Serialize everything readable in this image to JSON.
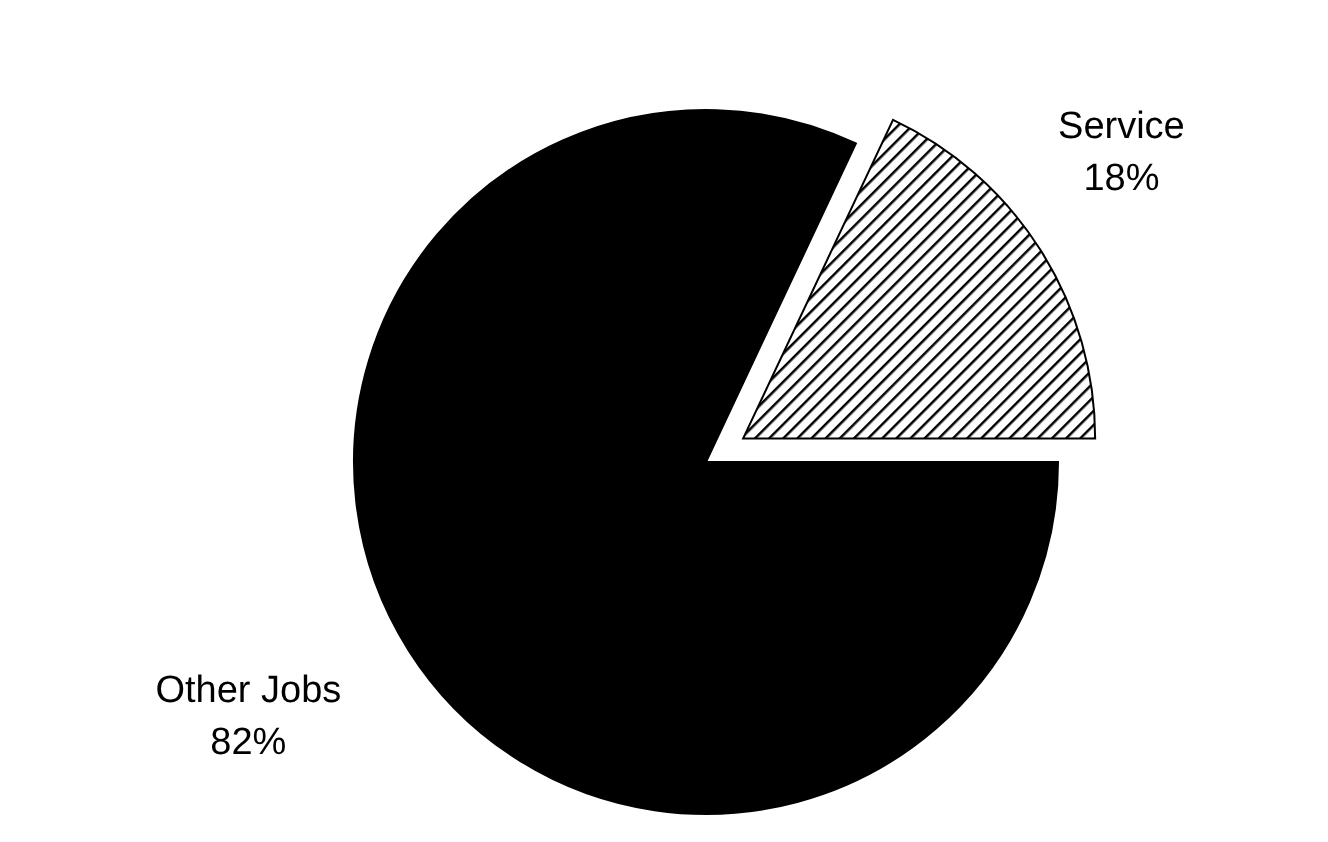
{
  "chart_data": {
    "type": "pie",
    "categories": [
      "Service",
      "Other Jobs"
    ],
    "values": [
      18,
      82
    ],
    "colors": [
      "#000000",
      "#000000"
    ],
    "value_labels": [
      "18%",
      "82%"
    ],
    "legend": false
  }
}
